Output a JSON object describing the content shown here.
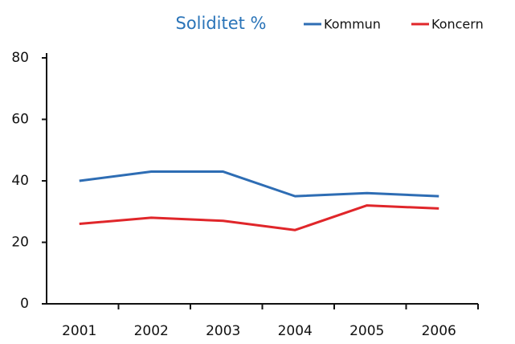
{
  "chart_data": {
    "type": "line",
    "title": "Soliditet %",
    "categories": [
      "2001",
      "2002",
      "2003",
      "2004",
      "2005",
      "2006"
    ],
    "series": [
      {
        "name": "Kommun",
        "color": "#2e6db4",
        "values": [
          40,
          43,
          43,
          35,
          36,
          35
        ]
      },
      {
        "name": "Koncern",
        "color": "#e0262a",
        "values": [
          26,
          28,
          27,
          24,
          32,
          31
        ]
      }
    ],
    "ylim": [
      0,
      80
    ],
    "yticks": [
      0,
      20,
      40,
      60,
      80
    ],
    "grid": false,
    "legend": "top-right"
  }
}
